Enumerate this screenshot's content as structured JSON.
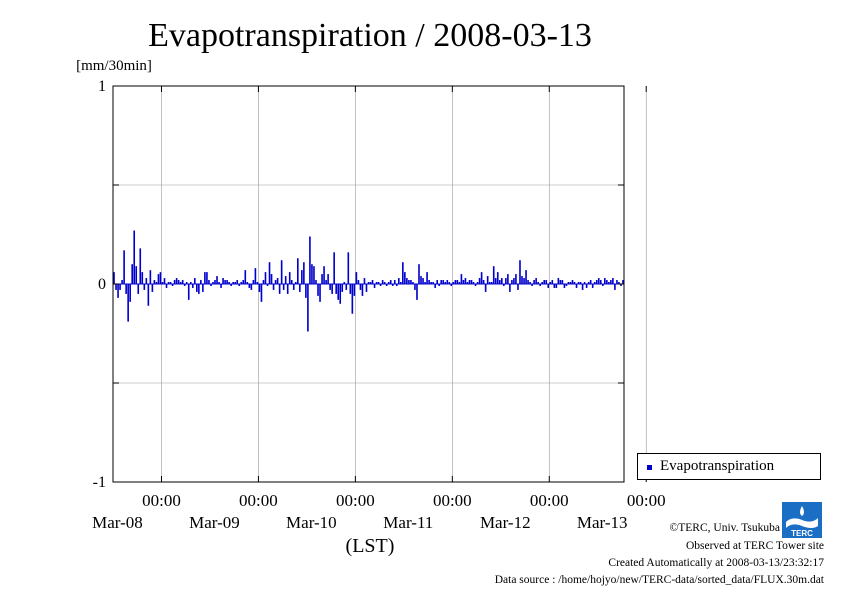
{
  "chart_data": {
    "type": "bar",
    "title": "Evapotranspiration / 2008-03-13",
    "ylabel": "[mm/30min]",
    "xlabel": "(LST)",
    "ylim": [
      -1,
      1
    ],
    "yticks": [
      "1",
      "0",
      "-1"
    ],
    "xticks": [
      {
        "time": "00:00",
        "date": "Mar-08"
      },
      {
        "time": "00:00",
        "date": "Mar-09"
      },
      {
        "time": "00:00",
        "date": "Mar-10"
      },
      {
        "time": "00:00",
        "date": "Mar-11"
      },
      {
        "time": "00:00",
        "date": "Mar-12"
      },
      {
        "time": "00:00",
        "date": "Mar-13"
      }
    ],
    "grid": true,
    "legend_position": "bottom-right",
    "series": [
      {
        "name": "Evapotranspiration",
        "color": "#0000cc",
        "x_start": "2008-03-07 12:00",
        "x_step": "30min",
        "values": [
          0.06,
          -0.03,
          -0.07,
          -0.03,
          0.02,
          0.17,
          -0.05,
          -0.19,
          -0.09,
          0.1,
          0.27,
          0.09,
          -0.05,
          0.18,
          0.06,
          -0.03,
          0.03,
          -0.11,
          0.07,
          -0.04,
          0.02,
          0.01,
          0.05,
          0.06,
          0.01,
          0.03,
          -0.02,
          0.01,
          0.01,
          -0.01,
          0.02,
          0.03,
          0.02,
          0.01,
          0.02,
          -0.01,
          0.01,
          -0.08,
          0.01,
          -0.02,
          0.03,
          -0.04,
          -0.05,
          0.02,
          -0.04,
          0.06,
          0.06,
          0.02,
          -0.01,
          0.01,
          0.02,
          0.04,
          0.01,
          -0.02,
          0.03,
          0.02,
          0.02,
          0.01,
          -0.01,
          0.01,
          0.01,
          0.02,
          -0.01,
          0.01,
          0.02,
          0.07,
          0.01,
          -0.02,
          -0.03,
          0.02,
          0.08,
          0.01,
          -0.04,
          -0.09,
          0.02,
          0.06,
          -0.01,
          0.11,
          0.05,
          -0.03,
          0.02,
          0.03,
          -0.05,
          0.12,
          -0.03,
          0.04,
          -0.05,
          0.06,
          0.02,
          -0.03,
          0.01,
          0.13,
          -0.04,
          0.07,
          0.11,
          -0.07,
          -0.24,
          0.24,
          0.1,
          0.09,
          0.02,
          -0.06,
          -0.09,
          0.05,
          0.09,
          0.02,
          0.05,
          -0.03,
          -0.05,
          0.16,
          -0.05,
          -0.08,
          -0.1,
          -0.04,
          0.01,
          -0.03,
          0.16,
          -0.05,
          -0.15,
          -0.06,
          0.06,
          0.02,
          -0.03,
          -0.06,
          0.03,
          -0.04,
          0.01,
          0.01,
          0.02,
          -0.02,
          0.01,
          0.01,
          -0.01,
          0.02,
          0.01,
          -0.01,
          0.01,
          0.02,
          -0.01,
          0.02,
          -0.01,
          0.03,
          0.01,
          0.11,
          0.06,
          0.03,
          0.02,
          0.02,
          0.01,
          -0.03,
          -0.08,
          0.1,
          0.04,
          0.03,
          0.01,
          0.06,
          0.02,
          0.01,
          0.01,
          -0.02,
          0.02,
          -0.01,
          0.02,
          0.02,
          0.01,
          0.02,
          0.01,
          -0.01,
          0.01,
          0.02,
          0.02,
          0.01,
          0.05,
          0.02,
          0.03,
          0.01,
          0.02,
          0.02,
          0.01,
          -0.01,
          0.01,
          0.03,
          0.06,
          0.02,
          -0.04,
          0.04,
          0.01,
          0.01,
          0.09,
          0.03,
          0.06,
          0.02,
          0.03,
          -0.01,
          0.03,
          0.05,
          -0.04,
          0.02,
          0.03,
          0.05,
          -0.03,
          0.12,
          0.04,
          0.03,
          0.07,
          0.02,
          0.01,
          -0.01,
          0.02,
          0.03,
          0.01,
          -0.01,
          0.01,
          0.02,
          0.02,
          -0.02,
          0.01,
          0.02,
          -0.02,
          -0.02,
          0.03,
          0.02,
          0.02,
          -0.02,
          -0.01,
          0.01,
          0.01,
          0.02,
          0.01,
          -0.02,
          0.01,
          0.01,
          -0.03,
          0.01,
          -0.02,
          0.01,
          0.02,
          -0.02,
          0.01,
          0.02,
          0.03,
          0.02,
          -0.01,
          0.03,
          0.02,
          0.01,
          0.02,
          0.03,
          -0.03,
          0.02,
          0.01,
          -0.01,
          0.02
        ]
      }
    ]
  },
  "legend": {
    "label": "Evapotranspiration"
  },
  "footer": {
    "copyright": "©TERC, Univ. Tsukuba",
    "observed": "Observed at TERC Tower site",
    "created": "Created Automatically at 2008-03-13/23:32:17",
    "source": "Data source : /home/hojyo/new/TERC-data/sorted_data/FLUX.30m.dat"
  },
  "logo": {
    "text": "TERC",
    "color": "#1a6fc4"
  }
}
